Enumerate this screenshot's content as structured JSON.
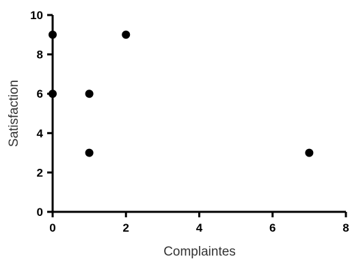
{
  "chart_data": {
    "type": "scatter",
    "title": "",
    "xlabel": "Complaintes",
    "ylabel": "Satisfaction",
    "xlim": [
      0,
      8
    ],
    "ylim": [
      0,
      10
    ],
    "x_ticks": [
      0,
      2,
      4,
      6,
      8
    ],
    "y_ticks": [
      0,
      2,
      4,
      6,
      8,
      10
    ],
    "grid": false,
    "legend": "none",
    "marker_color": "#000000",
    "points": [
      {
        "x": 0,
        "y": 9
      },
      {
        "x": 0,
        "y": 6
      },
      {
        "x": 1,
        "y": 6
      },
      {
        "x": 1,
        "y": 3
      },
      {
        "x": 2,
        "y": 9
      },
      {
        "x": 7,
        "y": 3
      }
    ]
  }
}
